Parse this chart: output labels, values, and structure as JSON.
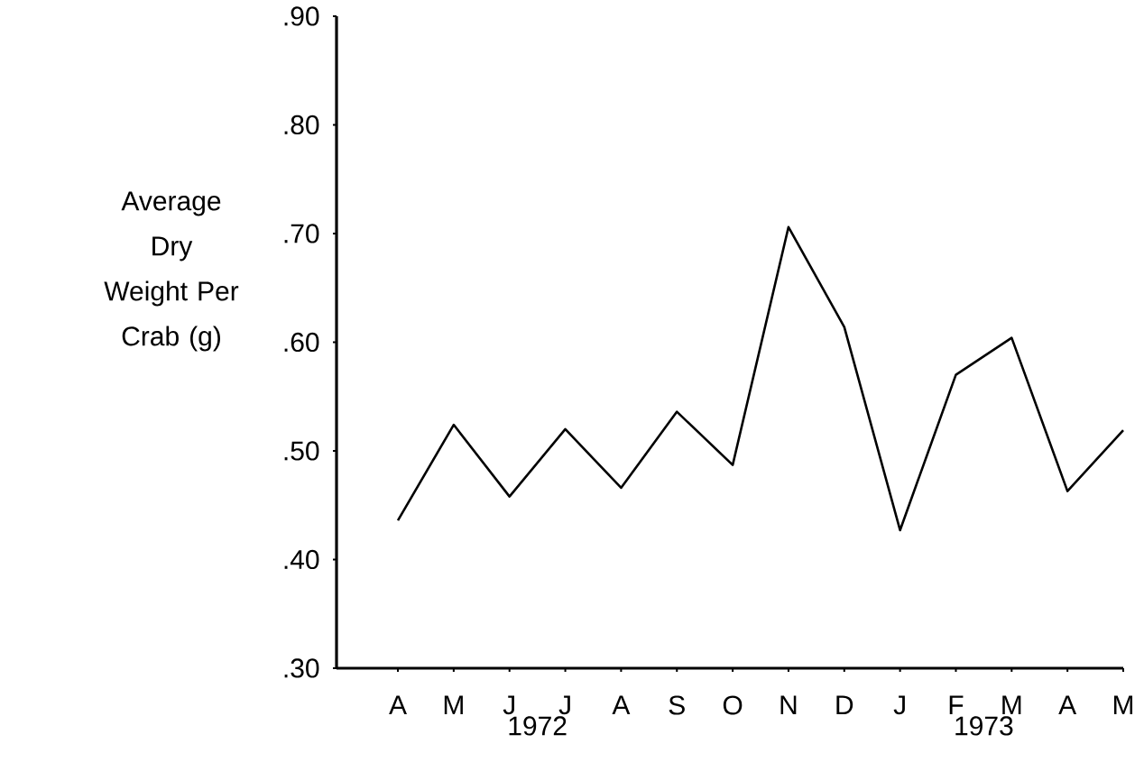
{
  "chart_data": {
    "type": "line",
    "ylabel": "Average Dry Weight Per Crab (g)",
    "categories": [
      "A",
      "M",
      "J",
      "J",
      "A",
      "S",
      "O",
      "N",
      "D",
      "J",
      "F",
      "M",
      "A",
      "M"
    ],
    "series": [
      {
        "color": "#000000",
        "values": [
          0.436,
          0.524,
          0.458,
          0.52,
          0.466,
          0.536,
          0.487,
          0.706,
          0.614,
          0.427,
          0.57,
          0.604,
          0.463,
          0.519
        ]
      }
    ],
    "ylim": [
      0.3,
      0.9
    ],
    "yticks": [
      {
        "value": 0.3,
        "label": ".30"
      },
      {
        "value": 0.4,
        "label": ".40"
      },
      {
        "value": 0.5,
        "label": ".50"
      },
      {
        "value": 0.6,
        "label": ".60"
      },
      {
        "value": 0.7,
        "label": ".70"
      },
      {
        "value": 0.8,
        "label": ".80"
      },
      {
        "value": 0.9,
        "label": ".90"
      }
    ],
    "annotations": [
      "1972",
      "1973"
    ],
    "grid": false,
    "marker": "none",
    "line_style": "solid"
  }
}
